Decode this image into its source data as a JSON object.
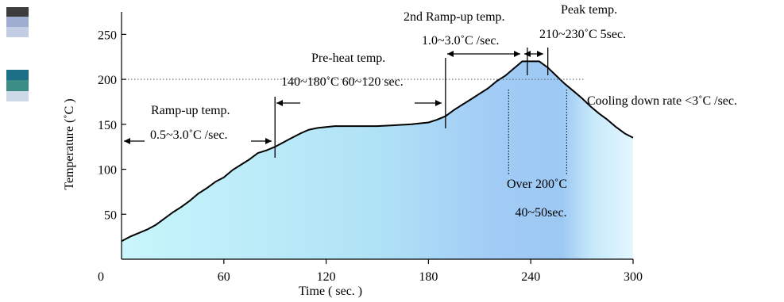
{
  "chart_data": {
    "type": "area",
    "title": "",
    "xlabel": "Time ( sec. )",
    "ylabel": "Temperature (˚C )",
    "xlim": [
      0,
      300
    ],
    "ylim": [
      0,
      275
    ],
    "xticks": [
      0,
      60,
      120,
      180,
      240,
      300
    ],
    "yticks": [
      50,
      100,
      150,
      200,
      250
    ],
    "reference_line": 200,
    "grid": false,
    "series": [
      {
        "x": [
          0,
          5,
          10,
          15,
          20,
          25,
          30,
          35,
          40,
          45,
          50,
          55,
          60,
          65,
          70,
          75,
          80,
          85,
          90,
          95,
          100,
          105,
          110,
          115,
          120,
          125,
          130,
          140,
          150,
          160,
          170,
          180,
          185,
          190,
          195,
          200,
          205,
          210,
          215,
          220,
          225,
          230,
          235,
          240,
          245,
          250,
          255,
          260,
          265,
          270,
          275,
          280,
          285,
          290,
          295,
          300
        ],
        "y": [
          20,
          25,
          29,
          33,
          38,
          45,
          52,
          58,
          65,
          73,
          79,
          86,
          91,
          99,
          105,
          111,
          118,
          121,
          125,
          130,
          135,
          140,
          144,
          146,
          147,
          148,
          148,
          148,
          148,
          149,
          150,
          152,
          155,
          159,
          166,
          172,
          178,
          184,
          190,
          198,
          204,
          212,
          220,
          220,
          220,
          213,
          204,
          195,
          187,
          179,
          170,
          162,
          155,
          147,
          140,
          135
        ]
      }
    ],
    "annotations": {
      "ramp_up": {
        "title": "Ramp-up temp.",
        "value": "0.5~3.0˚C /sec."
      },
      "preheat": {
        "title": "Pre-heat temp.",
        "value": "140~180˚C 60~120 sec."
      },
      "ramp_up_2": {
        "title": "2nd Ramp-up temp.",
        "value": "1.0~3.0˚C /sec."
      },
      "peak": {
        "title": "Peak temp.",
        "value": "210~230˚C 5sec."
      },
      "cooling": {
        "value": "Cooling down rate <3˚C /sec."
      },
      "over200": {
        "title": "Over 200˚C",
        "value": "40~50sec."
      }
    },
    "colors": {
      "fill_start": "#c8f6fb",
      "fill_mid": "#a8d6f4",
      "fill_peak": "#9cc8f4",
      "fill_end": "#e3f7ff",
      "swatch1_top": "#3d3d3d",
      "swatch1_bottom": "#c3cde4",
      "swatch2_top": "#1b6f86",
      "swatch2_bottom": "#cdd9e6"
    }
  }
}
